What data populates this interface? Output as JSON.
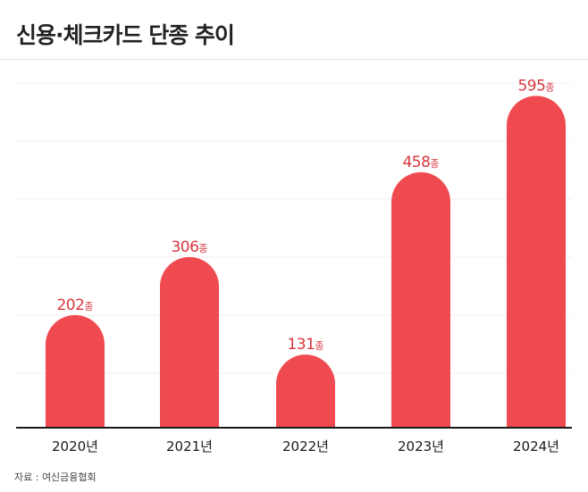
{
  "title": "신용·체크카드 단종 추이",
  "source": "자료 : 여신금융협회",
  "unit_suffix": "종",
  "chart_data": {
    "type": "bar",
    "categories": [
      "2020년",
      "2021년",
      "2022년",
      "2023년",
      "2024년"
    ],
    "values": [
      202,
      306,
      131,
      458,
      595
    ],
    "value_labels": [
      "202종",
      "306종",
      "131종",
      "458종",
      "595종"
    ],
    "ylim": [
      0,
      650
    ],
    "grid": true,
    "bar_color": "#ef4a4f",
    "label_color": "#d9363e",
    "axis_color": "#1a1a1a"
  }
}
